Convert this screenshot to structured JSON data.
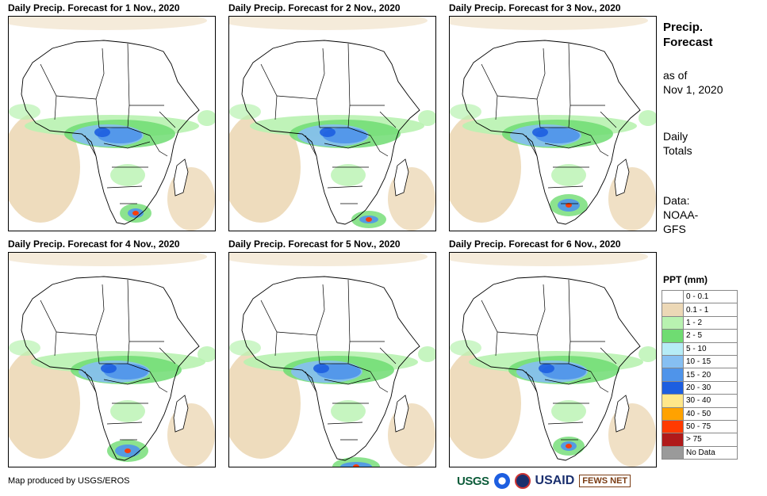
{
  "panels": [
    {
      "title": "Daily Precip. Forecast for 1 Nov., 2020"
    },
    {
      "title": "Daily Precip. Forecast for 2 Nov., 2020"
    },
    {
      "title": "Daily Precip. Forecast for 3 Nov., 2020"
    },
    {
      "title": "Daily Precip. Forecast for 4 Nov., 2020"
    },
    {
      "title": "Daily Precip. Forecast for 5 Nov., 2020"
    },
    {
      "title": "Daily Precip. Forecast for 6 Nov., 2020"
    }
  ],
  "sidebar": {
    "title_line1": "Precip.",
    "title_line2": "Forecast",
    "asof_line1": "as of",
    "asof_line2": "Nov 1, 2020",
    "totals_line1": "Daily",
    "totals_line2": "Totals",
    "data_line1": "Data:",
    "data_line2": "NOAA-",
    "data_line3": "GFS"
  },
  "legend": {
    "title": "PPT (mm)",
    "items": [
      {
        "label": "0 - 0.1",
        "color": "#ffffff"
      },
      {
        "label": "0.1 - 1",
        "color": "#ecd8b6"
      },
      {
        "label": "1 - 2",
        "color": "#b8f2b0"
      },
      {
        "label": "2 - 5",
        "color": "#6fdc72"
      },
      {
        "label": "5 - 10",
        "color": "#b6ecf6"
      },
      {
        "label": "10 - 15",
        "color": "#86bff2"
      },
      {
        "label": "15 - 20",
        "color": "#4f94ea"
      },
      {
        "label": "20 - 30",
        "color": "#1d5ee0"
      },
      {
        "label": "30 - 40",
        "color": "#ffe78a"
      },
      {
        "label": "40 - 50",
        "color": "#ffa200"
      },
      {
        "label": "50 - 75",
        "color": "#ff3a00"
      },
      {
        "label": "> 75",
        "color": "#b01a1a"
      },
      {
        "label": "No Data",
        "color": "#9a9a9a"
      }
    ]
  },
  "footer": {
    "credit": "Map produced by USGS/EROS"
  },
  "logos": {
    "usgs": "USGS",
    "usaid": "USAID",
    "fews": "FEWS NET"
  }
}
